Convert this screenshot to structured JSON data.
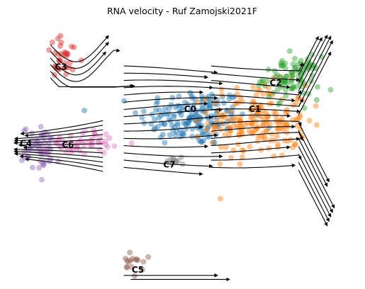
{
  "chart_data": {
    "type": "scatter",
    "title": "RNA velocity - Ruf Zamojski2021F",
    "xlabel": "",
    "ylabel": "",
    "xlim": [
      -10,
      10
    ],
    "ylim": [
      -10,
      10
    ],
    "axes_visible": false,
    "grid": false,
    "legend": "none (clusters labeled on-plot)",
    "overlay": "velocity streamlines with arrowheads (black)",
    "clusters": [
      {
        "label": "C0",
        "color": "#1f77b4",
        "center": [
          0.6,
          2.6
        ],
        "spread": [
          3.1,
          2.2
        ],
        "n": 170
      },
      {
        "label": "C1",
        "color": "#ff7f0e",
        "center": [
          4.3,
          2.3
        ],
        "spread": [
          2.8,
          2.8
        ],
        "n": 190
      },
      {
        "label": "C2",
        "color": "#2ca02c",
        "center": [
          6.2,
          5.6
        ],
        "spread": [
          1.6,
          1.6
        ],
        "n": 90
      },
      {
        "label": "C3",
        "color": "#d62728",
        "center": [
          -6.8,
          7.1
        ],
        "spread": [
          1.1,
          1.6
        ],
        "n": 34
      },
      {
        "label": "C4",
        "color": "#9467bd",
        "center": [
          -8.1,
          0.2
        ],
        "spread": [
          1.1,
          1.7
        ],
        "n": 55
      },
      {
        "label": "C5",
        "color": "#8c564b",
        "center": [
          -2.9,
          -8.6
        ],
        "spread": [
          0.6,
          0.9
        ],
        "n": 16
      },
      {
        "label": "C6",
        "color": "#e377c2",
        "center": [
          -5.8,
          0.7
        ],
        "spread": [
          1.9,
          0.9
        ],
        "n": 55
      },
      {
        "label": "C7",
        "color": "#7f7f7f",
        "center": [
          -0.4,
          -0.7
        ],
        "spread": [
          0.5,
          0.5
        ],
        "n": 10
      }
    ],
    "label_positions": [
      {
        "label": "C3",
        "x": -7.0,
        "y": 6.2
      },
      {
        "label": "C2",
        "x": 5.3,
        "y": 5.0
      },
      {
        "label": "C0",
        "x": 0.4,
        "y": 3.0
      },
      {
        "label": "C1",
        "x": 4.1,
        "y": 3.0
      },
      {
        "label": "C4",
        "x": -9.0,
        "y": 0.4
      },
      {
        "label": "C6",
        "x": -6.6,
        "y": 0.3
      },
      {
        "label": "C7",
        "x": -0.8,
        "y": -1.2
      },
      {
        "label": "C5",
        "x": -2.6,
        "y": -9.2
      }
    ]
  }
}
